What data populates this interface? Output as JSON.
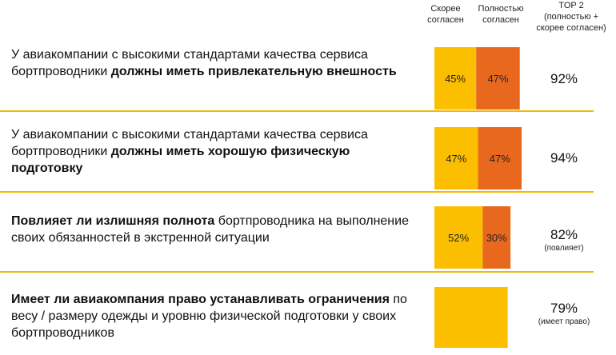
{
  "headers": {
    "col1": [
      "Скорее",
      "согласен"
    ],
    "col2": [
      "Полностью",
      "согласен"
    ],
    "col3": [
      "TOP 2",
      "(полностью +",
      "скорее согласен)"
    ]
  },
  "rows": [
    {
      "text": [
        {
          "t": "У авиакомпании с высокими стандартами качества сервиса бортпроводники ",
          "b": false
        },
        {
          "t": "должны иметь привлекательную внешность",
          "b": true
        }
      ],
      "top2": "92%",
      "note": ""
    },
    {
      "text": [
        {
          "t": "У авиакомпании с высокими стандартами качества сервиса бортпроводники ",
          "b": false
        },
        {
          "t": "должны иметь хорошую физическую подготовку",
          "b": true
        }
      ],
      "top2": "94%",
      "note": ""
    },
    {
      "text": [
        {
          "t": "Повлияет ли излишняя полнота",
          "b": true
        },
        {
          "t": " бортпроводника на выполнение своих обязанностей в экстренной ситуации",
          "b": false
        }
      ],
      "top2": "82%",
      "note": "(повлияет)"
    },
    {
      "text": [
        {
          "t": "Имеет ли авиакомпания право устанавливать ограничения",
          "b": true
        },
        {
          "t": " по весу / размеру одежды и уровню физической подготовки у своих бортпроводников",
          "b": false
        }
      ],
      "top2": "79%",
      "note": "(имеет право)"
    }
  ],
  "chart_data": {
    "type": "bar",
    "orientation": "horizontal-stacked",
    "categories": [
      "Внешность",
      "Физическая подготовка",
      "Полнота",
      "Право на ограничения"
    ],
    "series": [
      {
        "name": "Скорее согласен",
        "color": "#fbbf00",
        "values": [
          45,
          47,
          52,
          79
        ],
        "labels": [
          "45%",
          "47%",
          "52%",
          ""
        ]
      },
      {
        "name": "Полностью согласен",
        "color": "#e8691e",
        "values": [
          47,
          47,
          30,
          0
        ],
        "labels": [
          "47%",
          "47%",
          "30%",
          ""
        ]
      }
    ],
    "xlim": [
      0,
      100
    ]
  }
}
